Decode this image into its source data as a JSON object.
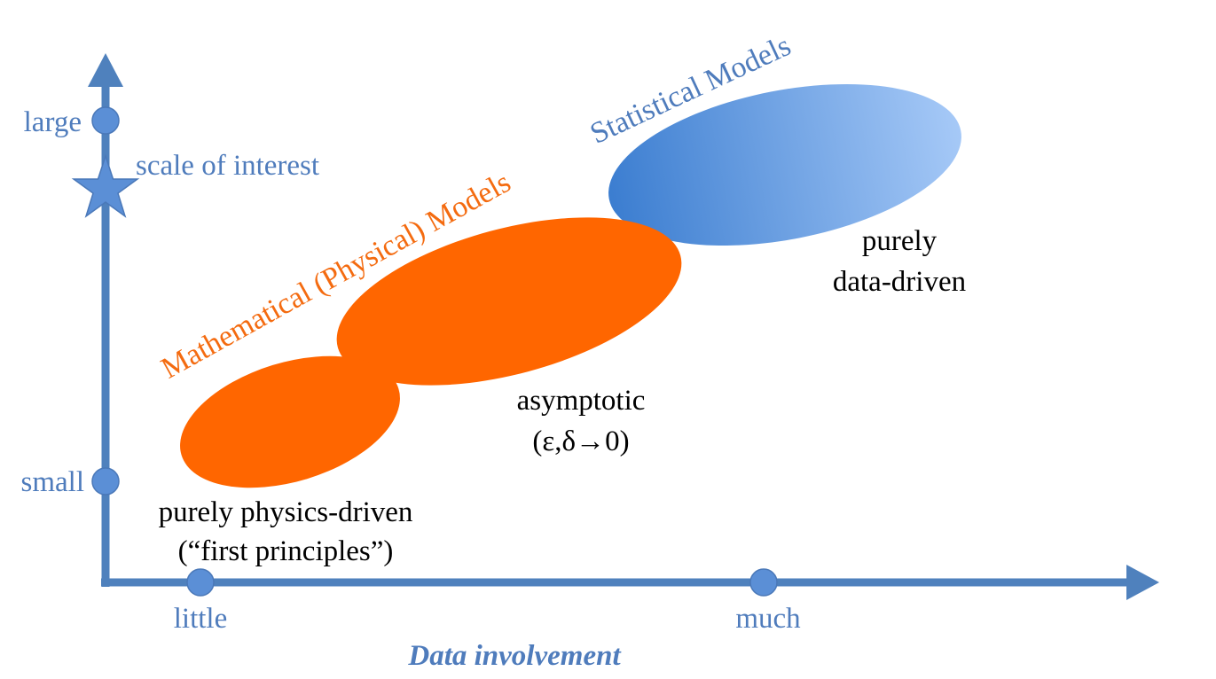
{
  "colors": {
    "axis": "#4f81bd",
    "marker": "#5b8fd6",
    "physical_models": "#ff6600",
    "statistical_models_dark": "#3d7fd0",
    "statistical_models_light": "#9ec4f7",
    "blue_text": "#4f7cbc",
    "orange_text": "#f46b10"
  },
  "y_axis": {
    "tick_large": "large",
    "tick_small": "small",
    "scale_of_interest": "scale of interest",
    "star_marker_icon": "star-icon"
  },
  "x_axis": {
    "title": "Data involvement",
    "tick_little": "little",
    "tick_much": "much"
  },
  "regions": {
    "physical_models_label": "Mathematical (Physical) Models",
    "statistical_models_label": "Statistical Models"
  },
  "annotations": {
    "physics_driven_line1": "purely physics-driven",
    "physics_driven_line2": "(“first principles”)",
    "asymptotic_line1": "asymptotic",
    "asymptotic_line2": "(ε,δ→0)",
    "data_driven_line1": "purely",
    "data_driven_line2": "data-driven"
  }
}
